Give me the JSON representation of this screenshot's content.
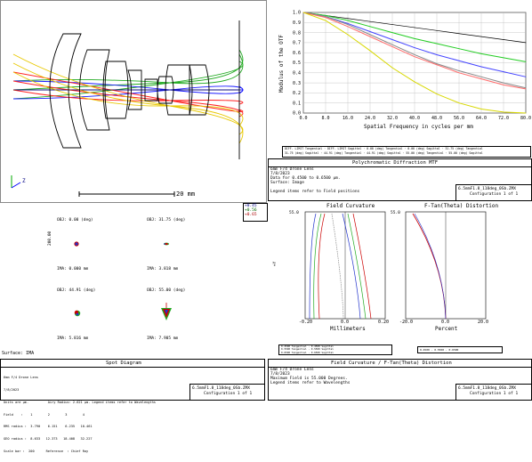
{
  "layout_view": {
    "scale_label": "20 mm",
    "axis_z": "Z",
    "colors": [
      "#1a1aff",
      "#22aa22",
      "#ff2222",
      "#e8c800"
    ]
  },
  "mtf": {
    "ylabel": "Modulus of the OTF",
    "xlabel": "Spatial Frequency in cycles per mm",
    "yticks": [
      "1.0",
      "0.9",
      "0.8",
      "0.7",
      "0.6",
      "0.5",
      "0.4",
      "0.3",
      "0.2",
      "0.1",
      "0.0"
    ],
    "xticks": [
      "0.0",
      "8.0",
      "16.0",
      "24.0",
      "32.0",
      "40.0",
      "48.0",
      "56.0",
      "64.0",
      "72.0",
      "80.0"
    ],
    "legend": [
      "DIFF. LIMIT Tangential",
      "DIFF. LIMIT Sagittal",
      "0.00 (deg) Tangential",
      "0.00 (deg) Sagittal",
      "31.75 (deg) Tangential",
      "31.75 (deg) Sagittal",
      "44.91 (deg) Tangential",
      "44.91 (deg) Sagittal",
      "55.00 (deg) Tangential",
      "55.00 (deg) Sagittal"
    ],
    "title": "Polychromatic Diffraction MTF",
    "info_lines": [
      "6mm F/4 Drone Lens",
      "7/8/2023",
      "Data for 0.4500 to 0.6500 μm.",
      "Surface: Image",
      "",
      "Legend items refer to Field positions"
    ],
    "file": "6.5mmF1.8_118deg_0Sb.ZMX",
    "config": "Configuration 1 of 1"
  },
  "chart_data": {
    "type": "line",
    "title": "",
    "xlabel": "Spatial Frequency in cycles per mm",
    "ylabel": "Modulus of the OTF",
    "xlim": [
      0,
      80
    ],
    "ylim": [
      0,
      1
    ],
    "x": [
      0,
      8,
      16,
      24,
      32,
      40,
      48,
      56,
      64,
      72,
      80
    ],
    "series": [
      {
        "name": "DIFF. LIMIT",
        "color": "#000000",
        "values": [
          1.0,
          0.97,
          0.94,
          0.91,
          0.88,
          0.85,
          0.82,
          0.79,
          0.76,
          0.73,
          0.7
        ]
      },
      {
        "name": "0.00 (deg) Tangential",
        "color": "#22cc22",
        "values": [
          1.0,
          0.97,
          0.92,
          0.86,
          0.8,
          0.74,
          0.69,
          0.64,
          0.59,
          0.55,
          0.51
        ]
      },
      {
        "name": "31.75 (deg) Tangential",
        "color": "#4444ff",
        "values": [
          1.0,
          0.96,
          0.89,
          0.81,
          0.73,
          0.65,
          0.58,
          0.52,
          0.46,
          0.41,
          0.36
        ]
      },
      {
        "name": "44.91 (deg) Sagittal",
        "color": "#888888",
        "values": [
          1.0,
          0.96,
          0.88,
          0.78,
          0.68,
          0.58,
          0.49,
          0.42,
          0.36,
          0.3,
          0.25
        ]
      },
      {
        "name": "44.91 (deg) Tangential",
        "color": "#ff6a6a",
        "values": [
          1.0,
          0.95,
          0.86,
          0.76,
          0.66,
          0.56,
          0.48,
          0.4,
          0.34,
          0.28,
          0.24
        ]
      },
      {
        "name": "55.00 (deg) Tangential",
        "color": "#d8d800",
        "values": [
          1.0,
          0.92,
          0.78,
          0.62,
          0.45,
          0.31,
          0.19,
          0.1,
          0.04,
          0.01,
          0.0
        ]
      }
    ]
  },
  "spot": {
    "legend_fields": [
      "+0.45",
      "+0.56",
      "+0.65"
    ],
    "panels": [
      {
        "obj": "OBJ: 0.00 (deg)",
        "ima": "IMA: 0.000 mm"
      },
      {
        "obj": "OBJ: 31.75 (deg)",
        "ima": "IMA: 3.818 mm"
      },
      {
        "obj": "OBJ: 44.91 (deg)",
        "ima": "IMA: 5.816 mm"
      },
      {
        "obj": "OBJ: 55.00 (deg)",
        "ima": "IMA: 7.905 mm"
      }
    ],
    "scale": "200.00",
    "surface": "Surface: IMA",
    "title": "Spot Diagram",
    "info_lines": [
      "6mm F/4 Drone Lens",
      "7/8/2023",
      "Units are μm.          Airy Radius: 2.621 μm. Legend items refer to Wavelengths",
      "Field    :    1        2        3        4",
      "RMS radius :  3.790    6.151    6.235   10.461",
      "GEO radius :  8.633   12.373   18.408   32.227",
      "Scale bar :  200      Reference  : Chief Ray"
    ],
    "file": "6.5mmF1.8_118deg_0Sb.ZMX",
    "config": "Configuration 1 of 1"
  },
  "field_curvature": {
    "title_fc": "Field Curvature",
    "title_dist": "F-Tan(Theta) Distortion",
    "ymax": "55.0",
    "yaxis": "+Y",
    "xlabel_fc": "Millimeters",
    "xlabel_dist": "Percent",
    "xticks_fc": [
      "-0.20",
      "0.0",
      "0.20"
    ],
    "xticks_dist": [
      "-20.0",
      "0.0",
      "20.0"
    ],
    "ymax_dist": "55.0",
    "legend_fc": [
      "0.4500 Tangential",
      "0.4500 Sagittal",
      "0.5500 Tangential",
      "0.5500 Sagittal",
      "0.6500 Tangential",
      "0.6500 Sagittal"
    ],
    "legend_dist": [
      "0.4500",
      "0.5500",
      "0.6500"
    ],
    "title": "Field Curvature / F-Tan(Theta) Distortion",
    "info_lines": [
      "6mm F/4 Drone Lens",
      "7/8/2023",
      "Maximum Field is 55.000 Degrees.",
      "Legend items refer to Wavelengths"
    ],
    "file": "6.5mmF1.8_118deg_0Sb.ZMX",
    "config": "Configuration 1 of 1"
  }
}
